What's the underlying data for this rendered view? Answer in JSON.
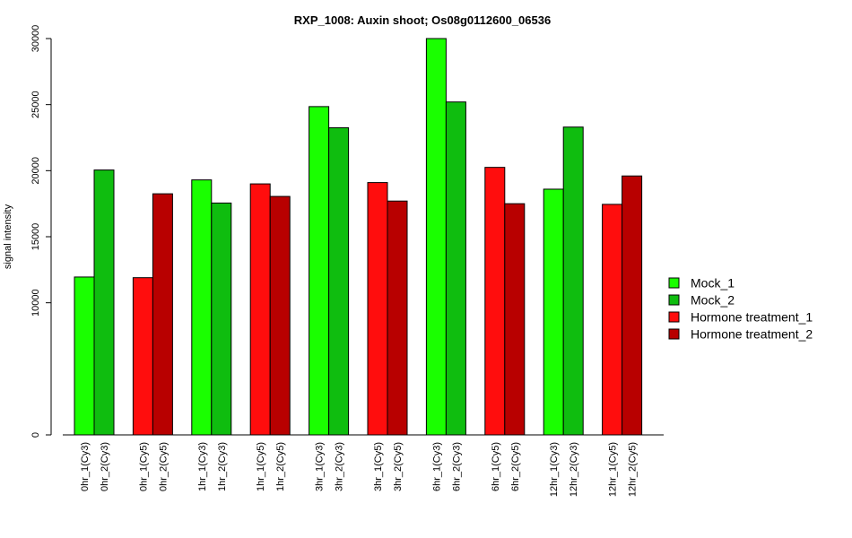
{
  "chart_data": {
    "type": "bar",
    "title": "RXP_1008: Auxin shoot; Os08g0112600_06536",
    "ylabel": "signal intensity",
    "xlabel": "",
    "ylim": [
      0,
      30000
    ],
    "y_ticks": [
      0,
      10000,
      15000,
      20000,
      25000,
      30000
    ],
    "grid": false,
    "legend_position": "right",
    "colors": {
      "Mock_1": "#1aff00",
      "Mock_2": "#0fbd0f",
      "Hormone treatment_1": "#ff0d0d",
      "Hormone treatment_2": "#b80000"
    },
    "legend": [
      "Mock_1",
      "Mock_2",
      "Hormone treatment_1",
      "Hormone treatment_2"
    ],
    "groups": [
      {
        "bars": [
          {
            "label": "0hr_1(Cy3)",
            "value": 11950,
            "series": "Mock_1"
          },
          {
            "label": "0hr_2(Cy3)",
            "value": 20050,
            "series": "Mock_2"
          }
        ]
      },
      {
        "bars": [
          {
            "label": "0hr_1(Cy5)",
            "value": 11900,
            "series": "Hormone treatment_1"
          },
          {
            "label": "0hr_2(Cy5)",
            "value": 18250,
            "series": "Hormone treatment_2"
          }
        ]
      },
      {
        "bars": [
          {
            "label": "1hr_1(Cy3)",
            "value": 19300,
            "series": "Mock_1"
          },
          {
            "label": "1hr_2(Cy3)",
            "value": 17550,
            "series": "Mock_2"
          }
        ]
      },
      {
        "bars": [
          {
            "label": "1hr_1(Cy5)",
            "value": 19000,
            "series": "Hormone treatment_1"
          },
          {
            "label": "1hr_2(Cy5)",
            "value": 18050,
            "series": "Hormone treatment_2"
          }
        ]
      },
      {
        "bars": [
          {
            "label": "3hr_1(Cy3)",
            "value": 24850,
            "series": "Mock_1"
          },
          {
            "label": "3hr_2(Cy3)",
            "value": 23250,
            "series": "Mock_2"
          }
        ]
      },
      {
        "bars": [
          {
            "label": "3hr_1(Cy5)",
            "value": 19100,
            "series": "Hormone treatment_1"
          },
          {
            "label": "3hr_2(Cy5)",
            "value": 17700,
            "series": "Hormone treatment_2"
          }
        ]
      },
      {
        "bars": [
          {
            "label": "6hr_1(Cy3)",
            "value": 30000,
            "series": "Mock_1"
          },
          {
            "label": "6hr_2(Cy3)",
            "value": 25200,
            "series": "Mock_2"
          }
        ]
      },
      {
        "bars": [
          {
            "label": "6hr_1(Cy5)",
            "value": 20250,
            "series": "Hormone treatment_1"
          },
          {
            "label": "6hr_2(Cy5)",
            "value": 17500,
            "series": "Hormone treatment_2"
          }
        ]
      },
      {
        "bars": [
          {
            "label": "12hr_1(Cy3)",
            "value": 18600,
            "series": "Mock_1"
          },
          {
            "label": "12hr_2(Cy3)",
            "value": 23300,
            "series": "Mock_2"
          }
        ]
      },
      {
        "bars": [
          {
            "label": "12hr_1(Cy5)",
            "value": 17450,
            "series": "Hormone treatment_1"
          },
          {
            "label": "12hr_2(Cy5)",
            "value": 19600,
            "series": "Hormone treatment_2"
          }
        ]
      }
    ]
  }
}
